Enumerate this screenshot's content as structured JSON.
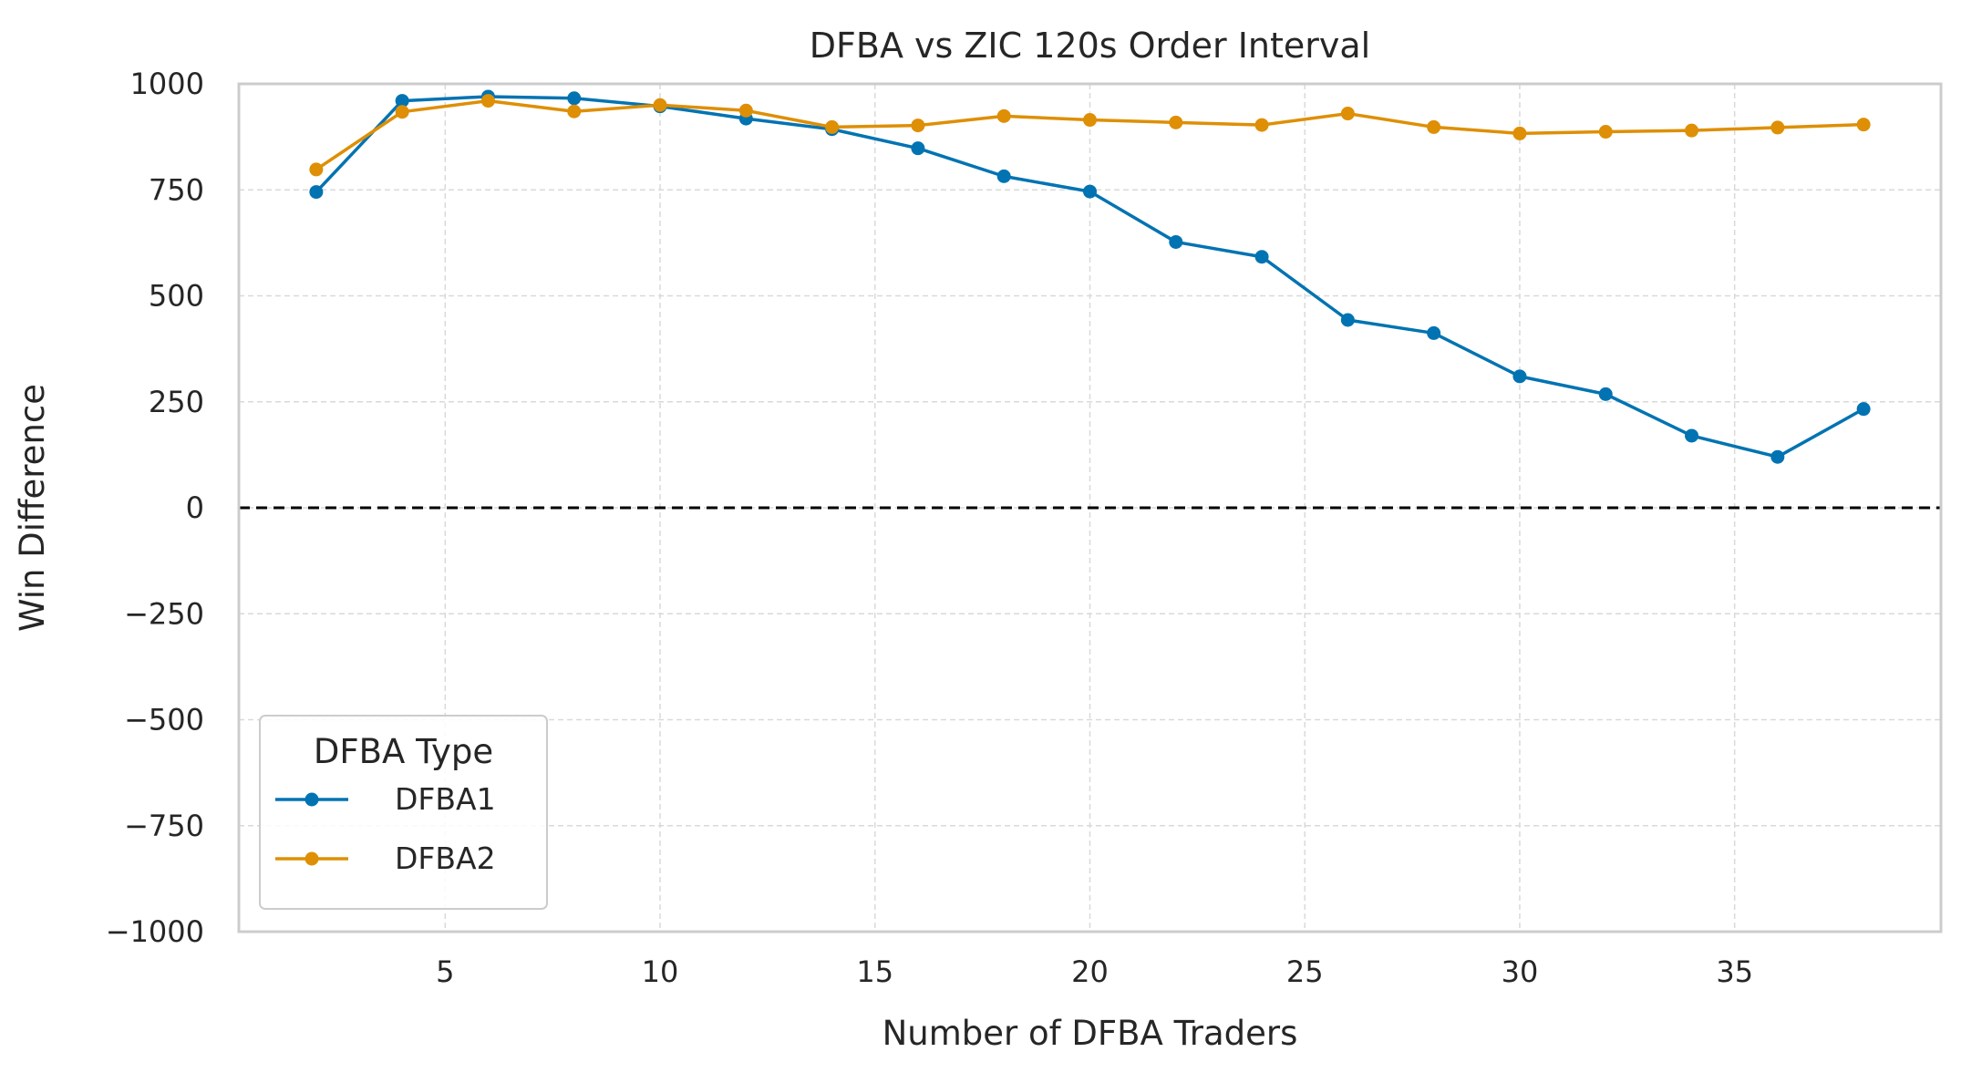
{
  "chart_data": {
    "type": "line",
    "title": "DFBA vs ZIC 120s Order Interval",
    "xlabel": "Number of DFBA Traders",
    "ylabel": "Win Difference",
    "xlim": [
      0.2,
      39.8
    ],
    "ylim": [
      -1000,
      1000
    ],
    "xticks": [
      5,
      10,
      15,
      20,
      25,
      30,
      35
    ],
    "yticks": [
      -1000,
      -750,
      -500,
      -250,
      0,
      250,
      500,
      750,
      1000
    ],
    "ytick_labels": [
      "−1000",
      "−750",
      "−500",
      "−250",
      "0",
      "250",
      "500",
      "750",
      "1000"
    ],
    "grid": true,
    "reference_line": {
      "y": 0,
      "style": "dashed",
      "color": "#000000"
    },
    "legend": {
      "title": "DFBA Type",
      "placement": "lower-left"
    },
    "x": [
      2,
      4,
      6,
      8,
      10,
      12,
      14,
      16,
      18,
      20,
      22,
      24,
      26,
      28,
      30,
      32,
      34,
      36,
      38
    ],
    "series": [
      {
        "name": "DFBA1",
        "color": "#0173b2",
        "values": [
          745,
          960,
          970,
          966,
          947,
          918,
          893,
          848,
          782,
          746,
          627,
          592,
          443,
          412,
          310,
          268,
          170,
          120,
          233
        ]
      },
      {
        "name": "DFBA2",
        "color": "#de8f05",
        "values": [
          798,
          934,
          960,
          935,
          950,
          937,
          898,
          902,
          924,
          915,
          909,
          903,
          930,
          898,
          883,
          887,
          890,
          897,
          904
        ]
      }
    ]
  }
}
